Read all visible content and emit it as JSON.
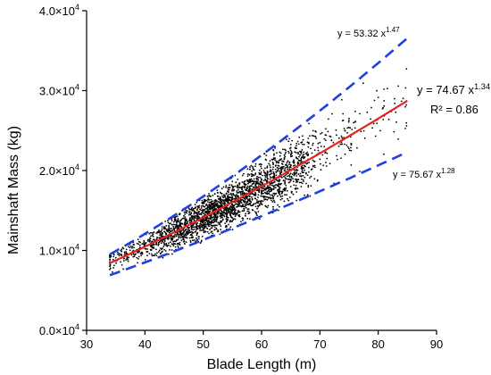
{
  "chart_data": {
    "type": "scatter",
    "xlabel": "Blade Length (m)",
    "ylabel": "Mainshaft Mass (kg)",
    "xlim": [
      30,
      90
    ],
    "ylim": [
      0,
      40000
    ],
    "x_ticks": [
      30,
      40,
      50,
      60,
      70,
      80,
      90
    ],
    "x_tick_labels": [
      "30",
      "40",
      "50",
      "60",
      "70",
      "80",
      "90"
    ],
    "y_ticks": [
      0,
      10000,
      20000,
      30000,
      40000
    ],
    "y_tick_labels": [
      {
        "mantissa": "0.0×10",
        "exp": "4"
      },
      {
        "mantissa": "1.0×10",
        "exp": "4"
      },
      {
        "mantissa": "2.0×10",
        "exp": "4"
      },
      {
        "mantissa": "3.0×10",
        "exp": "4"
      },
      {
        "mantissa": "4.0×10",
        "exp": "4"
      }
    ],
    "grid": false,
    "legend": "none",
    "fits": [
      {
        "role": "fit",
        "a": 74.67,
        "b": 1.34,
        "x_range": [
          34,
          85
        ],
        "color": "#e3231c",
        "style": "solid",
        "label_base": "y = 74.67 x",
        "label_exp": "1.34",
        "r2_label": "R² = 0.86"
      },
      {
        "role": "upper",
        "a": 53.32,
        "b": 1.47,
        "x_range": [
          34,
          85
        ],
        "color": "#1f3fe0",
        "style": "dashed",
        "label_base": "y = 53.32 x",
        "label_exp": "1.47"
      },
      {
        "role": "lower",
        "a": 75.67,
        "b": 1.28,
        "x_range": [
          34,
          85
        ],
        "color": "#1f3fe0",
        "style": "dashed",
        "label_base": "y = 75.67 x",
        "label_exp": "1.28"
      }
    ],
    "scatter_count": 2600,
    "scatter_x_range": [
      34,
      85
    ],
    "scatter_color": "#000000"
  }
}
